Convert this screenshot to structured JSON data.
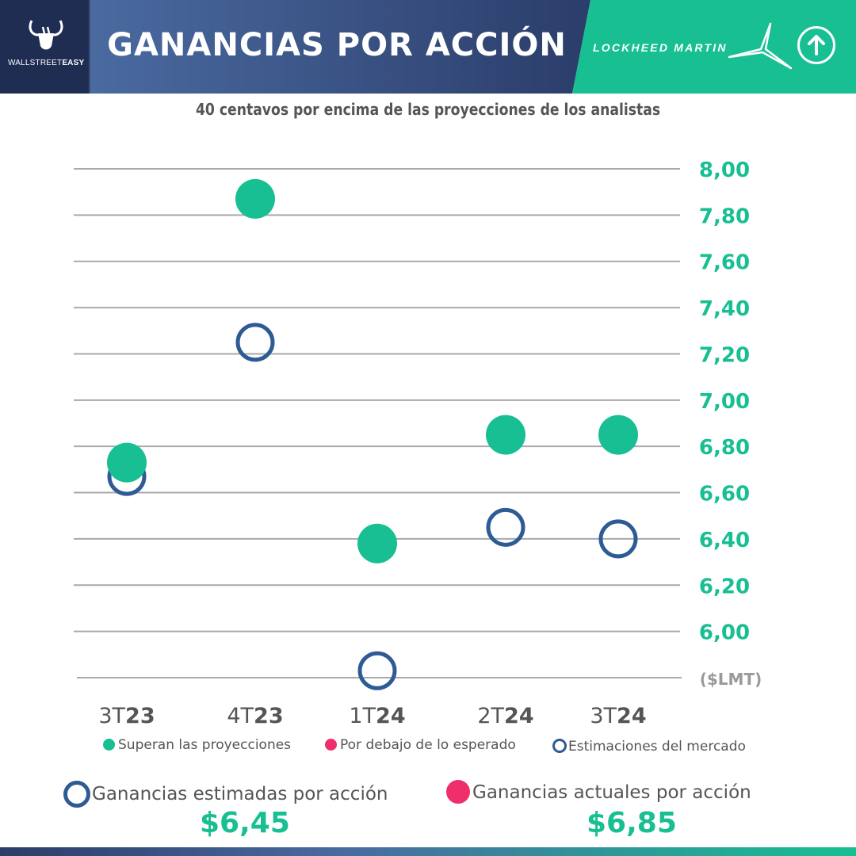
{
  "header": {
    "brand_prefix": "WALLSTREET",
    "brand_suffix": "EASY",
    "title": "GANANCIAS POR ACCIÓN",
    "company": "LOCKHEED MARTIN",
    "trend_icon": "arrow-up-circle-icon"
  },
  "colors": {
    "navy": "#1f2d52",
    "green": "#17bf92",
    "blue_ring": "#2e5b94",
    "pink": "#ef2f6b",
    "grid": "#a9a9a9"
  },
  "chart_data": {
    "type": "scatter",
    "title": "40 centavos por encima de las proyecciones de los analistas",
    "categories": [
      "3T23",
      "4T23",
      "1T24",
      "2T24",
      "3T24"
    ],
    "category_parts": [
      [
        "3T",
        "23"
      ],
      [
        "4T",
        "23"
      ],
      [
        "1T",
        "24"
      ],
      [
        "2T",
        "24"
      ],
      [
        "3T",
        "24"
      ]
    ],
    "series": [
      {
        "name": "Superan las proyecciones",
        "values": [
          6.73,
          7.87,
          6.38,
          6.85,
          6.85
        ]
      },
      {
        "name": "Estimaciones del mercado",
        "values": [
          6.67,
          7.25,
          5.83,
          6.45,
          6.4
        ]
      }
    ],
    "y_ticks": [
      "8,00",
      "7,80",
      "7,60",
      "7,40",
      "7,20",
      "7,00",
      "6,80",
      "6,60",
      "6,40",
      "6,20",
      "6,00"
    ],
    "ylim": [
      5.8,
      8.0
    ],
    "ylabel": "($LMT)",
    "grid": true,
    "legend": [
      {
        "label": "Superan las proyecciones",
        "marker": "dot-green"
      },
      {
        "label": "Por debajo de lo esperado",
        "marker": "dot-pink"
      },
      {
        "label": "Estimaciones del mercado",
        "marker": "ring-blue"
      }
    ]
  },
  "summary": {
    "estimated_label": "Ganancias estimadas por acción",
    "estimated_value": "$6,45",
    "actual_label": "Ganancias actuales por acción",
    "actual_value": "$6,85"
  }
}
